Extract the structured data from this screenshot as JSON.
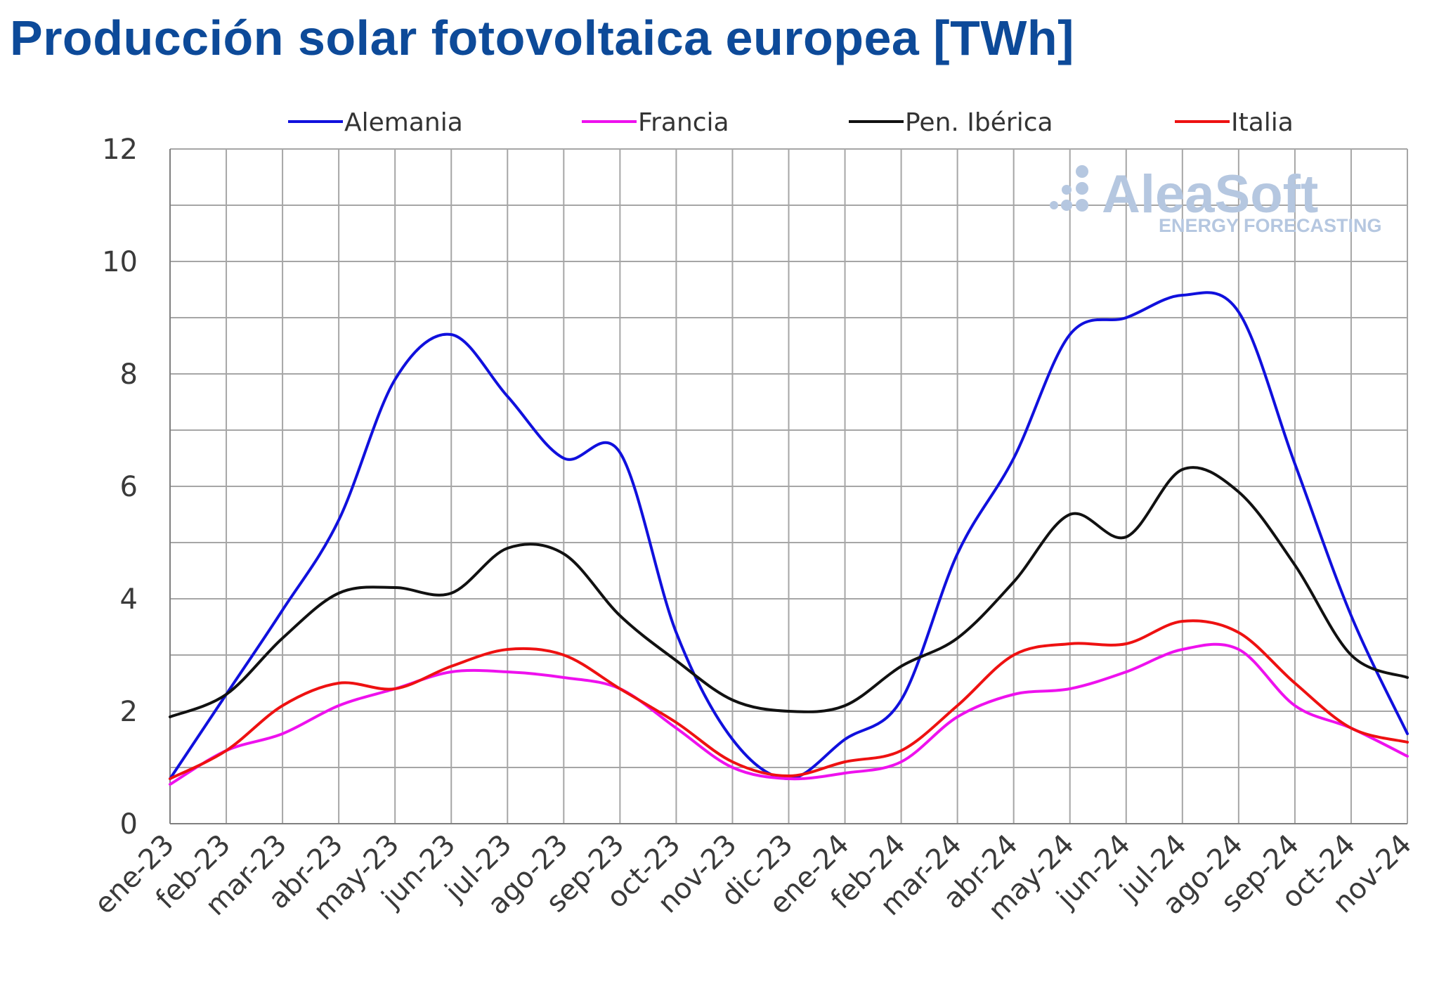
{
  "chart_data": {
    "type": "line",
    "title": "Producción solar fotovoltaica europea [TWh]",
    "categories": [
      "ene-23",
      "feb-23",
      "mar-23",
      "abr-23",
      "may-23",
      "jun-23",
      "jul-23",
      "ago-23",
      "sep-23",
      "oct-23",
      "nov-23",
      "dic-23",
      "ene-24",
      "feb-24",
      "mar-24",
      "abr-24",
      "may-24",
      "jun-24",
      "jul-24",
      "ago-24",
      "sep-24",
      "oct-24",
      "nov-24"
    ],
    "ylim": [
      0,
      12
    ],
    "yticks": [
      0,
      2,
      4,
      6,
      8,
      10,
      12
    ],
    "grid": true,
    "legend_position": "top",
    "series": [
      {
        "name": "Alemania",
        "color": "#1010dd",
        "values": [
          0.8,
          2.3,
          3.8,
          5.4,
          7.9,
          8.7,
          7.6,
          6.5,
          6.6,
          3.4,
          1.5,
          0.8,
          1.5,
          2.2,
          4.8,
          6.5,
          8.7,
          9.0,
          9.4,
          9.1,
          6.4,
          3.7,
          1.6
        ]
      },
      {
        "name": "Francia",
        "color": "#ee11ee",
        "values": [
          0.7,
          1.3,
          1.6,
          2.1,
          2.4,
          2.7,
          2.7,
          2.6,
          2.4,
          1.7,
          1.0,
          0.8,
          0.9,
          1.1,
          1.9,
          2.3,
          2.4,
          2.7,
          3.1,
          3.1,
          2.1,
          1.7,
          1.2
        ]
      },
      {
        "name": "Pen. Ibérica",
        "color": "#111111",
        "values": [
          1.9,
          2.3,
          3.3,
          4.1,
          4.2,
          4.1,
          4.9,
          4.8,
          3.7,
          2.9,
          2.2,
          2.0,
          2.1,
          2.8,
          3.3,
          4.3,
          5.5,
          5.1,
          6.3,
          5.9,
          4.6,
          3.0,
          2.6
        ]
      },
      {
        "name": "Italia",
        "color": "#ee1111",
        "values": [
          0.8,
          1.3,
          2.1,
          2.5,
          2.4,
          2.8,
          3.1,
          3.0,
          2.4,
          1.8,
          1.1,
          0.85,
          1.1,
          1.3,
          2.1,
          3.0,
          3.2,
          3.2,
          3.6,
          3.4,
          2.5,
          1.7,
          1.45
        ]
      }
    ]
  },
  "watermark": {
    "brand": "AleaSoft",
    "tagline": "ENERGY FORECASTING",
    "color": "#b5c7e0"
  },
  "colors": {
    "title": "#0d4a99",
    "grid": "#a6a6a6",
    "axis": "#7f7f7f"
  }
}
